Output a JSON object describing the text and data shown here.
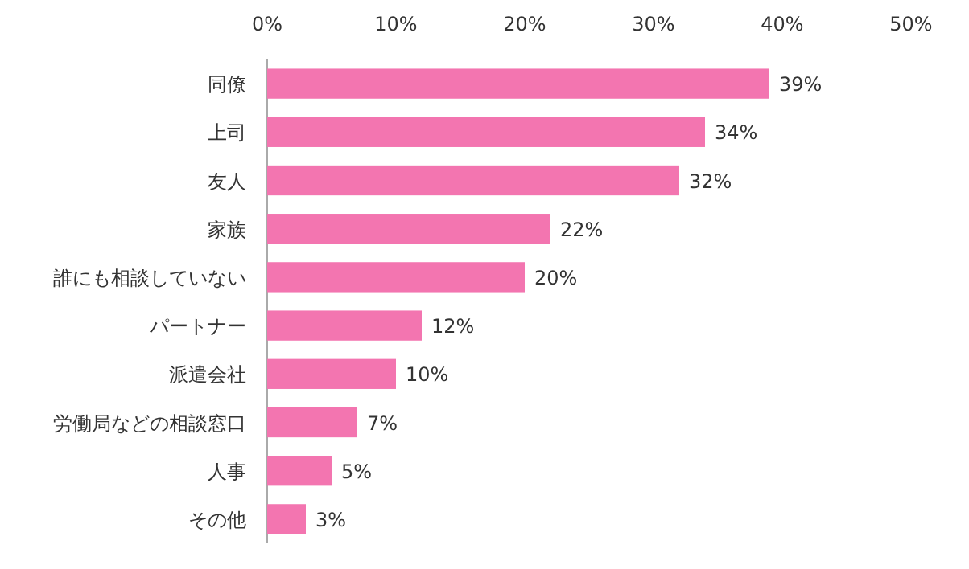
{
  "chart_data": {
    "type": "bar",
    "orientation": "horizontal",
    "categories": [
      "同僚",
      "上司",
      "友人",
      "家族",
      "誰にも相談していない",
      "パートナー",
      "派遣会社",
      "労働局などの相談窓口",
      "人事",
      "その他"
    ],
    "values": [
      39,
      34,
      32,
      22,
      20,
      12,
      10,
      7,
      5,
      3
    ],
    "value_labels": [
      "39%",
      "34%",
      "32%",
      "22%",
      "20%",
      "12%",
      "10%",
      "7%",
      "5%",
      "3%"
    ],
    "color": "#f375b0",
    "xlim": [
      0,
      50
    ],
    "xticks": [
      {
        "value": 0,
        "label": "0%"
      },
      {
        "value": 10,
        "label": "10%"
      },
      {
        "value": 20,
        "label": "20%"
      },
      {
        "value": 30,
        "label": "30%"
      },
      {
        "value": 40,
        "label": "40%"
      },
      {
        "value": 50,
        "label": "50%"
      }
    ],
    "grid": false
  }
}
